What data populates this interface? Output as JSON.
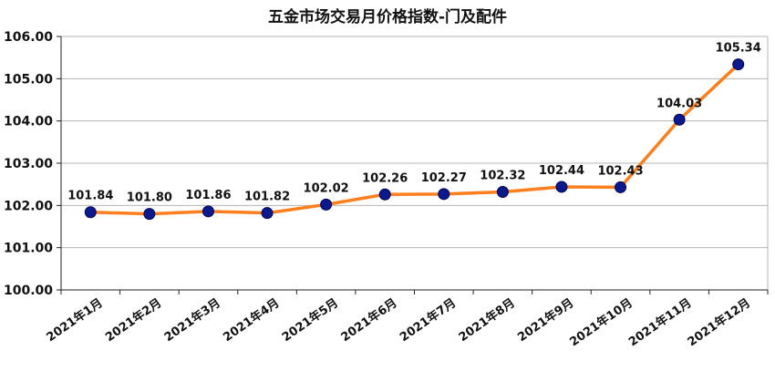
{
  "chart_data": {
    "type": "line",
    "title": "五金市场交易月价格指数-门及配件",
    "xlabel": "",
    "ylabel": "",
    "categories": [
      "2021年1月",
      "2021年2月",
      "2021年3月",
      "2021年4月",
      "2021年5月",
      "2021年6月",
      "2021年7月",
      "2021年8月",
      "2021年9月",
      "2021年10月",
      "2021年11月",
      "2021年12月"
    ],
    "series": [
      {
        "values": [
          101.84,
          101.8,
          101.86,
          101.82,
          102.02,
          102.26,
          102.27,
          102.32,
          102.44,
          102.43,
          104.03,
          105.34
        ],
        "data_labels": [
          "101.84",
          "101.80",
          "101.86",
          "101.82",
          "102.02",
          "102.26",
          "102.27",
          "102.32",
          "102.44",
          "102.43",
          "104.03",
          "105.34"
        ]
      }
    ],
    "yticks": [
      "100.00",
      "101.00",
      "102.00",
      "103.00",
      "104.00",
      "105.00",
      "106.00"
    ],
    "ylim": [
      100,
      106
    ],
    "grid": true,
    "legend": "none",
    "colors": {
      "line": "#ff7f1e",
      "marker": "#0a1a8c",
      "grid": "#b4b4b4",
      "axis": "#222222",
      "text": "#111111"
    }
  }
}
